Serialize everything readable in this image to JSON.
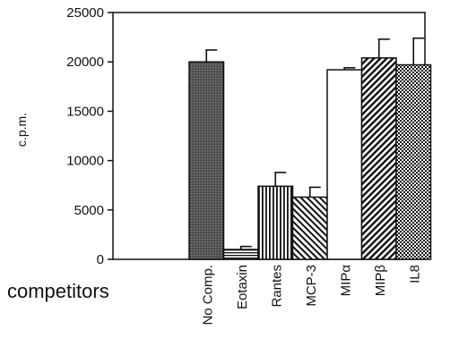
{
  "chart_data": {
    "type": "bar",
    "title": "",
    "xlabel": "competitors",
    "ylabel": "c.p.m.",
    "ylim": [
      0,
      25000
    ],
    "yticks": [
      0,
      5000,
      10000,
      15000,
      20000,
      25000
    ],
    "grid": false,
    "categories": [
      "No Comp.",
      "Eotaxin",
      "Rantes",
      "MCP-3",
      "MIPα",
      "MIPβ",
      "IL8"
    ],
    "values": [
      20000,
      1000,
      7400,
      6300,
      19200,
      20400,
      19700
    ],
    "errors": [
      1200,
      300,
      1400,
      1000,
      200,
      1900,
      2700
    ],
    "patterns": [
      "dark-stipple",
      "horizontal-lines",
      "vertical-lines",
      "diagonal-right",
      "white",
      "diagonal-left",
      "checker"
    ]
  }
}
